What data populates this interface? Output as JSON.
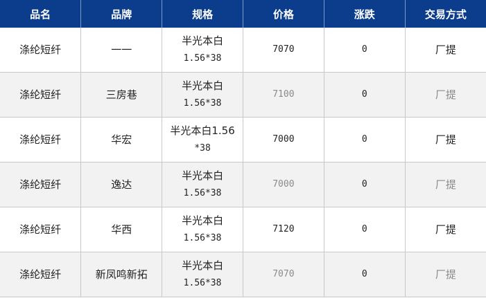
{
  "headers": [
    "品名",
    "品牌",
    "规格",
    "价格",
    "涨跌",
    "交易方式"
  ],
  "rows": [
    {
      "name": "涤纶短纤",
      "brand": "一一",
      "spec1": "半光本白",
      "spec2": "1.56*38",
      "price": "7070",
      "change": "0",
      "trade": "厂提"
    },
    {
      "name": "涤纶短纤",
      "brand": "三房巷",
      "spec1": "半光本白",
      "spec2": "1.56*38",
      "price": "7100",
      "change": "0",
      "trade": "厂提"
    },
    {
      "name": "涤纶短纤",
      "brand": "华宏",
      "spec1": "半光本白1.56",
      "spec2": "*38",
      "price": "7000",
      "change": "0",
      "trade": "厂提"
    },
    {
      "name": "涤纶短纤",
      "brand": "逸达",
      "spec1": "半光本白",
      "spec2": "1.56*38",
      "price": "7000",
      "change": "0",
      "trade": "厂提"
    },
    {
      "name": "涤纶短纤",
      "brand": "华西",
      "spec1": "半光本白",
      "spec2": "1.56*38",
      "price": "7120",
      "change": "0",
      "trade": "厂提"
    },
    {
      "name": "涤纶短纤",
      "brand": "新凤鸣新拓",
      "spec1": "半光本白",
      "spec2": "1.56*38",
      "price": "7070",
      "change": "0",
      "trade": "厂提"
    }
  ],
  "colors": {
    "header_bg": "#0b3d8c",
    "alt_row_bg": "#f2f2f2",
    "dim_text": "#8a8a8a"
  }
}
